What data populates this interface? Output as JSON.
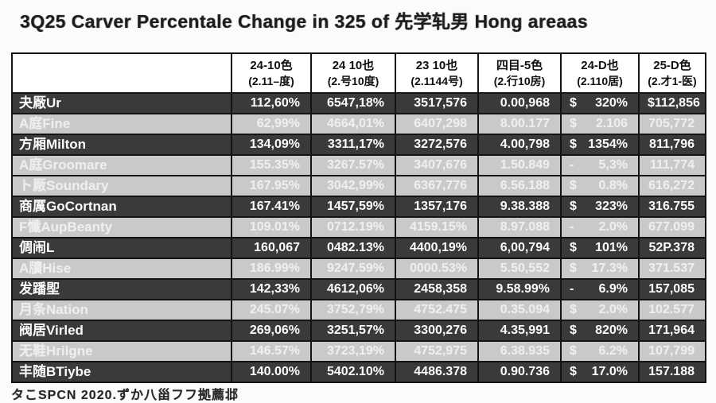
{
  "title": "3Q25 Carver Percentale Change in 325 of 先学轧男 Hong areaas",
  "footer": "タこSPCN 2020.ずか八甾フフ拠薦邶",
  "colors": {
    "dark_row_bg": "#3a3a3a",
    "light_row_bg": "#c9c9c9",
    "row_text": "#fcfcfc",
    "grid_border": "#141414",
    "header_bg": "#ffffff",
    "header_text": "#101010"
  },
  "table": {
    "columns": [
      {
        "line1": "",
        "line2": ""
      },
      {
        "line1": "24-10色",
        "line2": "(2.11–度)"
      },
      {
        "line1": "24 10也",
        "line2": "(2.号10度)"
      },
      {
        "line1": "23 10也",
        "line2": "(2.1144号)"
      },
      {
        "line1": "四目-5色",
        "line2": "(2.行10房)"
      },
      {
        "line1": "24-D也",
        "line2": "(2.110居)"
      },
      {
        "line1": "25-D色",
        "line2": "(2.才1-医)"
      }
    ],
    "rows": [
      {
        "label": "夬厰Ur",
        "shade": "dark",
        "values": [
          "112,60%",
          "6547,18%",
          "3517,576",
          "0.00,968",
          "$ 320%",
          "$ 112,856"
        ]
      },
      {
        "label": "A庭Fine",
        "shade": "light",
        "values": [
          "62,99%",
          "4664,01%",
          "6407,298",
          "8.00.177",
          "$ 2.106",
          "705,772"
        ]
      },
      {
        "label": "方厢Milton",
        "shade": "dark",
        "values": [
          "134,09%",
          "3311,17%",
          "3272,576",
          "4.00,798",
          "$ 1354%",
          "811,796"
        ]
      },
      {
        "label": "A庭Groomare",
        "shade": "light",
        "values": [
          "155.35%",
          "3267.57%",
          "3407,676",
          "1.50.849",
          "- 5,3%",
          "111,774"
        ]
      },
      {
        "label": "ト厰Soundary",
        "shade": "light",
        "values": [
          "167.95%",
          "3042,99%",
          "6367,776",
          "6.56.188",
          "$ 0.8%",
          "616,272"
        ]
      },
      {
        "label": "商厲GoCortnan",
        "shade": "dark",
        "values": [
          "167.41%",
          "1457,59%",
          "1357,176",
          "9.38.388",
          "$ 323%",
          "316.755"
        ]
      },
      {
        "label": "F懺AupBeanty",
        "shade": "light",
        "values": [
          "109.01%",
          "0712.19%",
          "4159.15%",
          "8.97.088",
          "- 2.0%",
          "677.099"
        ]
      },
      {
        "label": "倜闹L",
        "shade": "dark",
        "values": [
          "160,067",
          "0482.13%",
          "4400,19%",
          "6,00,794",
          "$ 101%",
          "52P.378"
        ]
      },
      {
        "label": "A牘Hise",
        "shade": "light",
        "values": [
          "186.99%",
          "9247.59%",
          "0000.53%",
          "5.50,552",
          "$ 17.3%",
          "371.537"
        ]
      },
      {
        "label": "发蹯堲",
        "shade": "dark",
        "values": [
          "142,33%",
          "4612,06%",
          "2458,358",
          "9.58.99%",
          "- 6.9%",
          "157,085"
        ]
      },
      {
        "label": "月条Nation",
        "shade": "light",
        "values": [
          "245.07%",
          "3752,79%",
          "4752.475",
          "0.35.094",
          "$ 2.0%",
          "102.577"
        ]
      },
      {
        "label": "阀居Virled",
        "shade": "dark",
        "values": [
          "269,06%",
          "3251,57%",
          "3300,276",
          "4.35,991",
          "$ 820%",
          "171,964"
        ]
      },
      {
        "label": "无鞋Hrilgne",
        "shade": "light",
        "values": [
          "146.57%",
          "3723,19%",
          "4752,975",
          "6.38.935",
          "$ 6.2%",
          "107,799"
        ]
      },
      {
        "label": "丰随BTiybe",
        "shade": "dark",
        "values": [
          "140.00%",
          "5402.10%",
          "4486.378",
          "0.90.736",
          "$ 17.0%",
          "157.188"
        ]
      }
    ]
  }
}
